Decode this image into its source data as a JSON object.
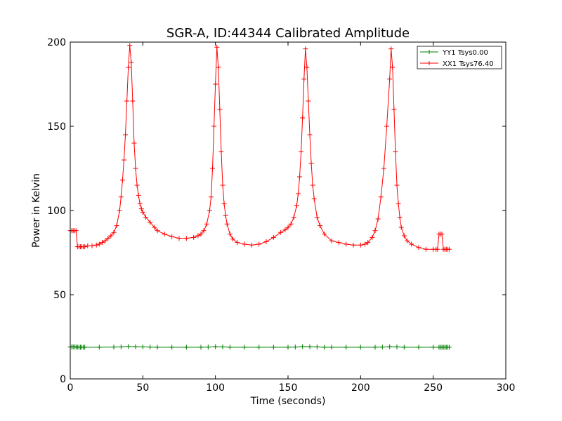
{
  "chart_data": {
    "type": "line",
    "title": "SGR-A, ID:44344 Calibrated Amplitude",
    "xlabel": "Time (seconds)",
    "ylabel": "Power in Kelvin",
    "xlim": [
      0,
      300
    ],
    "ylim": [
      0,
      200
    ],
    "xticks": [
      0,
      50,
      100,
      150,
      200,
      250,
      300
    ],
    "yticks": [
      0,
      50,
      100,
      150,
      200
    ],
    "grid": false,
    "legend_position": "top-right",
    "marker": "+",
    "series": [
      {
        "name": "YY1 Tsys0.00",
        "color": "#008000",
        "points": [
          [
            0,
            19
          ],
          [
            1,
            19
          ],
          [
            2,
            19
          ],
          [
            3,
            19
          ],
          [
            4,
            19
          ],
          [
            5,
            18.8
          ],
          [
            6,
            18.8
          ],
          [
            7,
            18.8
          ],
          [
            8,
            18.8
          ],
          [
            9,
            18.8
          ],
          [
            10,
            18.8
          ],
          [
            20,
            18.8
          ],
          [
            30,
            18.9
          ],
          [
            35,
            19
          ],
          [
            40,
            19.2
          ],
          [
            45,
            19.1
          ],
          [
            50,
            19
          ],
          [
            55,
            18.9
          ],
          [
            60,
            18.8
          ],
          [
            70,
            18.8
          ],
          [
            80,
            18.8
          ],
          [
            90,
            18.8
          ],
          [
            95,
            18.9
          ],
          [
            100,
            19.1
          ],
          [
            105,
            19
          ],
          [
            110,
            18.8
          ],
          [
            120,
            18.8
          ],
          [
            130,
            18.8
          ],
          [
            140,
            18.8
          ],
          [
            150,
            18.8
          ],
          [
            155,
            18.9
          ],
          [
            160,
            19.2
          ],
          [
            165,
            19.1
          ],
          [
            170,
            19
          ],
          [
            175,
            18.8
          ],
          [
            180,
            18.8
          ],
          [
            190,
            18.8
          ],
          [
            200,
            18.8
          ],
          [
            210,
            18.8
          ],
          [
            215,
            18.9
          ],
          [
            220,
            19.1
          ],
          [
            225,
            19
          ],
          [
            230,
            18.8
          ],
          [
            240,
            18.8
          ],
          [
            250,
            18.8
          ],
          [
            254,
            18.8
          ],
          [
            255,
            18.8
          ],
          [
            256,
            18.8
          ],
          [
            257,
            18.8
          ],
          [
            258,
            18.8
          ],
          [
            259,
            18.8
          ],
          [
            260,
            18.8
          ],
          [
            261,
            18.8
          ]
        ]
      },
      {
        "name": "XX1 Tsys76.40",
        "color": "#ff0000",
        "points": [
          [
            0,
            88
          ],
          [
            1,
            88
          ],
          [
            2,
            88
          ],
          [
            3,
            88
          ],
          [
            4,
            88
          ],
          [
            5,
            78.5
          ],
          [
            6,
            78.5
          ],
          [
            7,
            78.5
          ],
          [
            8,
            78.5
          ],
          [
            9,
            78.5
          ],
          [
            10,
            78.5
          ],
          [
            12,
            79
          ],
          [
            15,
            79
          ],
          [
            18,
            79.5
          ],
          [
            20,
            80
          ],
          [
            22,
            81
          ],
          [
            24,
            82
          ],
          [
            26,
            83.5
          ],
          [
            28,
            85
          ],
          [
            30,
            87
          ],
          [
            32,
            91
          ],
          [
            34,
            100
          ],
          [
            35,
            108
          ],
          [
            36,
            118
          ],
          [
            37,
            130
          ],
          [
            38,
            145
          ],
          [
            39,
            165
          ],
          [
            40,
            185
          ],
          [
            41,
            198
          ],
          [
            42,
            188
          ],
          [
            43,
            165
          ],
          [
            44,
            140
          ],
          [
            45,
            125
          ],
          [
            46,
            115
          ],
          [
            47,
            109
          ],
          [
            48,
            104
          ],
          [
            49,
            101
          ],
          [
            50,
            99
          ],
          [
            52,
            96
          ],
          [
            55,
            93
          ],
          [
            58,
            90
          ],
          [
            60,
            88
          ],
          [
            65,
            86
          ],
          [
            70,
            84.5
          ],
          [
            75,
            83.5
          ],
          [
            80,
            83.5
          ],
          [
            85,
            84
          ],
          [
            88,
            85
          ],
          [
            90,
            86
          ],
          [
            92,
            88
          ],
          [
            94,
            92
          ],
          [
            96,
            100
          ],
          [
            97,
            108
          ],
          [
            98,
            125
          ],
          [
            99,
            150
          ],
          [
            100,
            175
          ],
          [
            101,
            197
          ],
          [
            102,
            185
          ],
          [
            103,
            160
          ],
          [
            104,
            135
          ],
          [
            105,
            115
          ],
          [
            106,
            104
          ],
          [
            107,
            97
          ],
          [
            108,
            92
          ],
          [
            110,
            86
          ],
          [
            112,
            83
          ],
          [
            115,
            81
          ],
          [
            120,
            80
          ],
          [
            125,
            79.5
          ],
          [
            130,
            80
          ],
          [
            135,
            81.5
          ],
          [
            140,
            84
          ],
          [
            145,
            87
          ],
          [
            148,
            88.5
          ],
          [
            150,
            90
          ],
          [
            152,
            92
          ],
          [
            154,
            96
          ],
          [
            156,
            103
          ],
          [
            157,
            110
          ],
          [
            158,
            120
          ],
          [
            159,
            135
          ],
          [
            160,
            155
          ],
          [
            161,
            178
          ],
          [
            162,
            196
          ],
          [
            163,
            185
          ],
          [
            164,
            165
          ],
          [
            165,
            145
          ],
          [
            166,
            128
          ],
          [
            167,
            115
          ],
          [
            168,
            107
          ],
          [
            170,
            96
          ],
          [
            172,
            91
          ],
          [
            175,
            86
          ],
          [
            180,
            82
          ],
          [
            185,
            81
          ],
          [
            190,
            80
          ],
          [
            195,
            79.5
          ],
          [
            200,
            79.5
          ],
          [
            203,
            80
          ],
          [
            205,
            81
          ],
          [
            208,
            84
          ],
          [
            210,
            88
          ],
          [
            212,
            95
          ],
          [
            214,
            108
          ],
          [
            216,
            125
          ],
          [
            218,
            150
          ],
          [
            220,
            178
          ],
          [
            221,
            196
          ],
          [
            222,
            185
          ],
          [
            223,
            160
          ],
          [
            224,
            135
          ],
          [
            225,
            115
          ],
          [
            226,
            104
          ],
          [
            227,
            96
          ],
          [
            228,
            90
          ],
          [
            230,
            85
          ],
          [
            232,
            82
          ],
          [
            235,
            80
          ],
          [
            240,
            78
          ],
          [
            245,
            77
          ],
          [
            250,
            77
          ],
          [
            252,
            77
          ],
          [
            253,
            77
          ],
          [
            254,
            86
          ],
          [
            255,
            86
          ],
          [
            256,
            86
          ],
          [
            257,
            77
          ],
          [
            258,
            77
          ],
          [
            259,
            77
          ],
          [
            260,
            77
          ],
          [
            261,
            77
          ]
        ]
      }
    ]
  }
}
